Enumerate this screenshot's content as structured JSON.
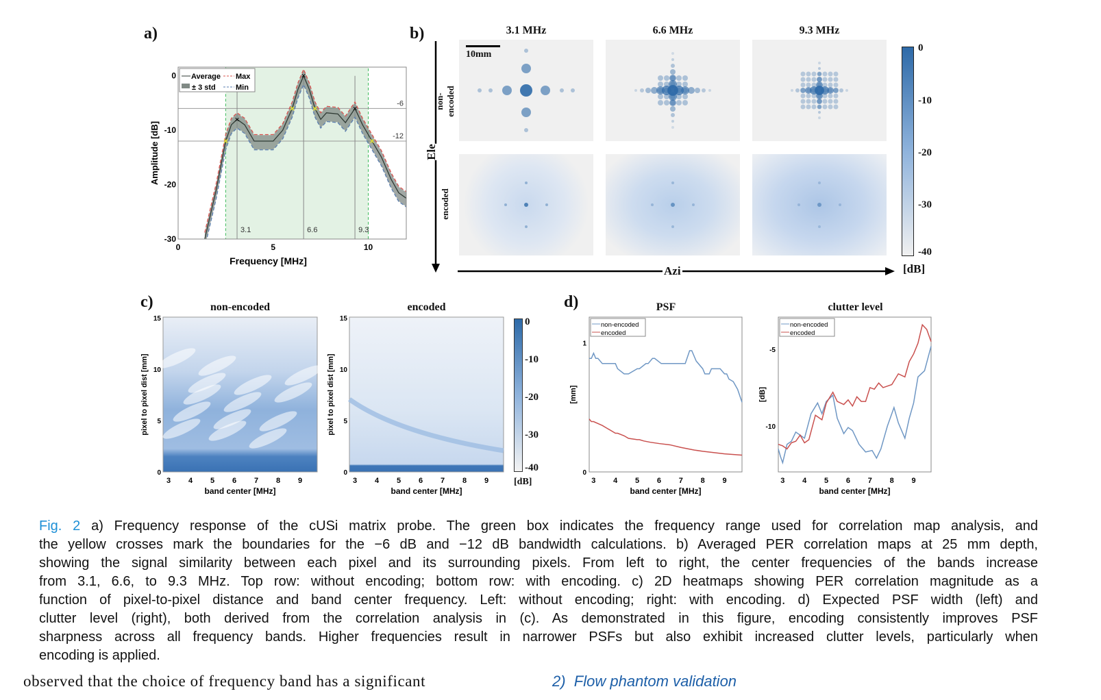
{
  "panels": {
    "a": {
      "label": "a)",
      "chart": {
        "type": "line",
        "xlabel": "Frequency [MHz]",
        "ylabel": "Amplitude [dB]",
        "xlim": [
          0,
          12
        ],
        "ylim": [
          -30,
          1.6
        ],
        "xticks": [
          "0",
          "5",
          "10"
        ],
        "yticks": [
          "0",
          "-10",
          "-20",
          "-30"
        ],
        "legend": {
          "placement": "top-left",
          "entries": [
            "Average",
            "Max",
            "± 3 std",
            "Min"
          ]
        },
        "threshold_labels": [
          "-6",
          "-12"
        ],
        "band_labels": [
          "3.1",
          "6.6",
          "9.3"
        ],
        "band_centers": [
          3.1,
          6.6,
          9.3
        ],
        "thresholds": [
          -6,
          -12
        ],
        "green_box": [
          2.5,
          10
        ],
        "average": {
          "x": [
            1.4,
            2.0,
            2.5,
            2.8,
            3.1,
            3.5,
            4.0,
            4.5,
            5.0,
            5.5,
            6.0,
            6.3,
            6.6,
            6.9,
            7.2,
            7.5,
            7.8,
            8.4,
            8.8,
            9.3,
            9.7,
            10.2,
            10.7,
            11.2,
            11.6,
            12.0
          ],
          "y": [
            -30,
            -21,
            -12,
            -9,
            -8,
            -9,
            -12,
            -12,
            -12,
            -10,
            -6,
            -2.5,
            0,
            -2.5,
            -6,
            -8,
            -6.8,
            -7,
            -8.6,
            -6,
            -9,
            -12,
            -15,
            -19,
            -21.5,
            -22.5
          ]
        },
        "std": 1.1,
        "yellow_crosses": [
          [
            2.5,
            -12
          ],
          [
            6.0,
            -6
          ],
          [
            7.2,
            -6
          ],
          [
            10.2,
            -12
          ]
        ],
        "peak_marks": [
          [
            3.1,
            -8
          ],
          [
            6.6,
            0
          ],
          [
            9.3,
            -6
          ]
        ],
        "colors": {
          "box": "#e3f2e4",
          "box_edge": "#3dbb5b",
          "average": "#2f3a34",
          "max": "#d9534f",
          "min": "#5b7fb0",
          "std": "#808a85",
          "cross": "#e6e62e"
        }
      }
    },
    "b": {
      "label": "b)",
      "columns": [
        "3.1 MHz",
        "6.6 MHz",
        "9.3 MHz"
      ],
      "rows": [
        "non-encoded",
        "encoded"
      ],
      "scale_bar": "10mm",
      "axis_vertical": "Ele",
      "axis_horizontal": "Azi",
      "colorbar": {
        "ticks": [
          "0",
          "-10",
          "-20",
          "-30",
          "-40"
        ],
        "unit": "[dB]",
        "range": [
          -40,
          0
        ],
        "color_high": "#2e6aa8",
        "color_low": "#f0f0f0"
      }
    },
    "c": {
      "label": "c)",
      "titles": [
        "non-encoded",
        "encoded"
      ],
      "xlabel": "band center [MHz]",
      "ylabel": "pixel to pixel dist [mm]",
      "xticks": [
        "3",
        "4",
        "5",
        "6",
        "7",
        "8",
        "9"
      ],
      "yticks": [
        "0",
        "5",
        "10",
        "15"
      ],
      "colorbar": {
        "ticks": [
          "0",
          "-10",
          "-20",
          "-30",
          "-40"
        ],
        "unit": "[dB]"
      }
    },
    "d": {
      "label": "d)",
      "charts": [
        {
          "type": "line",
          "title": "PSF",
          "ylabel": "[mm]",
          "xlabel": "band center [MHz]",
          "xlim": [
            2.8,
            9.8
          ],
          "ylim": [
            0,
            1.2
          ],
          "xticks": [
            "3",
            "4",
            "5",
            "6",
            "7",
            "8",
            "9"
          ],
          "yticks": [
            "0",
            "1"
          ],
          "legend": {
            "placement": "top-left"
          },
          "series": [
            {
              "name": "non-encoded",
              "color": "#6f97c4",
              "x": [
                2.8,
                2.9,
                3.0,
                3.1,
                3.2,
                3.4,
                3.6,
                4.0,
                4.1,
                4.4,
                4.6,
                5.0,
                5.1,
                5.4,
                5.5,
                5.7,
                5.8,
                6.1,
                6.2,
                7.2,
                7.4,
                7.5,
                7.7,
                8.0,
                8.1,
                8.3,
                8.4,
                8.6,
                8.8,
                9.0,
                9.1,
                9.2,
                9.4,
                9.6,
                9.8
              ],
              "y": [
                0.88,
                0.88,
                0.92,
                0.88,
                0.88,
                0.84,
                0.84,
                0.84,
                0.8,
                0.76,
                0.76,
                0.8,
                0.8,
                0.84,
                0.84,
                0.88,
                0.88,
                0.84,
                0.84,
                0.84,
                0.94,
                0.94,
                0.86,
                0.8,
                0.76,
                0.76,
                0.8,
                0.8,
                0.8,
                0.76,
                0.76,
                0.72,
                0.7,
                0.64,
                0.54
              ]
            },
            {
              "name": "encoded",
              "color": "#c9504e",
              "x": [
                2.8,
                2.9,
                3.0,
                3.4,
                3.6,
                4.0,
                4.1,
                4.4,
                4.6,
                5.0,
                5.1,
                5.3,
                5.6,
                6.0,
                6.5,
                7.0,
                7.6,
                8.0,
                8.5,
                9.0,
                9.8
              ],
              "y": [
                0.41,
                0.39,
                0.39,
                0.36,
                0.34,
                0.3,
                0.3,
                0.28,
                0.26,
                0.25,
                0.25,
                0.24,
                0.23,
                0.22,
                0.21,
                0.19,
                0.17,
                0.16,
                0.15,
                0.14,
                0.13
              ]
            }
          ]
        },
        {
          "type": "line",
          "title": "clutter level",
          "ylabel": "[dB]",
          "xlabel": "band center [MHz]",
          "xlim": [
            2.8,
            9.8
          ],
          "ylim": [
            -13,
            -2.9
          ],
          "xticks": [
            "3",
            "4",
            "5",
            "6",
            "7",
            "8",
            "9"
          ],
          "yticks": [
            "-5",
            "-10"
          ],
          "legend": {
            "placement": "top-left"
          },
          "series": [
            {
              "name": "non-encoded",
              "color": "#6f97c4",
              "x": [
                2.8,
                2.9,
                3.0,
                3.2,
                3.4,
                3.6,
                3.8,
                4.0,
                4.3,
                4.6,
                4.8,
                5.0,
                5.3,
                5.5,
                5.8,
                6.0,
                6.2,
                6.5,
                6.8,
                7.1,
                7.3,
                7.5,
                7.8,
                8.1,
                8.3,
                8.6,
                8.8,
                9.0,
                9.2,
                9.5,
                9.8
              ],
              "y": [
                -11.5,
                -12,
                -12.4,
                -11.2,
                -11,
                -10.4,
                -10.6,
                -10.8,
                -9.2,
                -8.5,
                -9.2,
                -8.4,
                -8,
                -9.5,
                -10.5,
                -10.1,
                -10.3,
                -11.2,
                -11.7,
                -11.6,
                -12.1,
                -11.5,
                -10,
                -8.8,
                -9.8,
                -10.8,
                -9.5,
                -8.5,
                -6.8,
                -6.4,
                -4.8
              ]
            },
            {
              "name": "encoded",
              "color": "#c9504e",
              "x": [
                2.8,
                3.0,
                3.2,
                3.4,
                3.6,
                3.8,
                4.0,
                4.2,
                4.5,
                4.8,
                5.0,
                5.3,
                5.5,
                5.8,
                6.0,
                6.2,
                6.4,
                6.6,
                6.8,
                7.0,
                7.2,
                7.4,
                7.6,
                7.8,
                8.0,
                8.3,
                8.6,
                8.8,
                9.0,
                9.2,
                9.4,
                9.6,
                9.8
              ],
              "y": [
                -11.2,
                -11.3,
                -11.5,
                -11.1,
                -11,
                -10.6,
                -11.1,
                -10.9,
                -9.3,
                -9.6,
                -8.5,
                -7.8,
                -8.4,
                -8.6,
                -8.3,
                -8.7,
                -8.1,
                -8.4,
                -8.4,
                -7.5,
                -7.6,
                -7.2,
                -7.5,
                -7.4,
                -7.3,
                -6.6,
                -6.8,
                -5.8,
                -5.3,
                -4.6,
                -3.4,
                -3.7,
                -4.5
              ]
            }
          ]
        }
      ]
    }
  },
  "caption": {
    "fig_ref": "Fig. 2",
    "lines": [
      " a) Frequency response of the cUSi matrix probe. The green box indicates the frequency range used for correlation map analysis, and",
      "the yellow crosses mark the boundaries for the −6 dB and −12 dB bandwidth calculations. b) Averaged PER correlation maps at 25 mm depth,",
      "showing the signal similarity between each pixel and its surrounding pixels. From left to right, the center frequencies of the bands increase",
      "from 3.1, 6.6, to 9.3 MHz. Top row: without encoding; bottom row: with encoding. c) 2D heatmaps showing PER correlation magnitude as a",
      "function of pixel-to-pixel distance and band center frequency. Left: without encoding; right: with encoding. d) Expected PSF width (left) and",
      "clutter level (right), both derived from the correlation analysis in (c). As demonstrated in this figure, encoding consistently improves PSF",
      "sharpness across all frequency bands. Higher frequencies result in narrower PSFs but also exhibit increased clutter levels, particularly when",
      "encoding is applied."
    ]
  },
  "body_text": {
    "left_col": "observed that the choice of frequency band has a significant",
    "right_heading_num": "2)",
    "right_heading": "Flow phantom validation"
  }
}
